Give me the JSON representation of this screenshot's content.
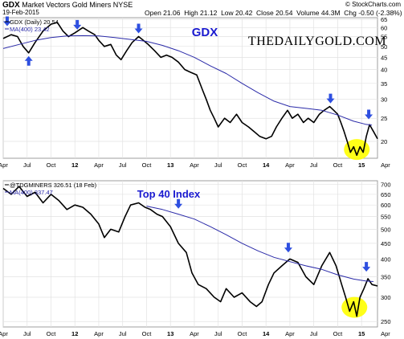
{
  "header": {
    "symbol": "GDX",
    "name": "Market Vectors Gold Miners",
    "exchange": "NYSE",
    "date": "19-Feb-2015",
    "credit": "© StockCharts.com",
    "open_label": "Open",
    "open": "21.06",
    "high_label": "High",
    "high": "21.12",
    "low_label": "Low",
    "low": "20.42",
    "close_label": "Close",
    "close": "20.54",
    "volume_label": "Volume",
    "volume": "44.3M",
    "chg_label": "Chg",
    "chg": "-0.50 (-2.38%)",
    "chg_arrow": "▼"
  },
  "colors": {
    "price": "#000000",
    "ma": "#2a2aa8",
    "arrow": "#2e4fe0",
    "highlight": "#ffff00",
    "title": "#1a1ad0",
    "grid": "#e2e2e2",
    "chg": "#cc0000"
  },
  "chart_data": [
    {
      "type": "line",
      "title": "GDX",
      "watermark": "THEDAILYGOLD.COM",
      "legend": [
        "GDX (Daily) 20.54",
        "MA(400) 23.42"
      ],
      "legend_position": "top-left",
      "grid": true,
      "scale": "log",
      "ylim": [
        17,
        66
      ],
      "yticks": [
        20,
        25,
        30,
        35,
        40,
        45,
        50,
        55,
        60,
        65
      ],
      "xlim": [
        0,
        47
      ],
      "xticks": [
        {
          "x": 0,
          "label": "Apr"
        },
        {
          "x": 3,
          "label": "Jul"
        },
        {
          "x": 6,
          "label": "Oct"
        },
        {
          "x": 9,
          "label": "12"
        },
        {
          "x": 12,
          "label": "Apr"
        },
        {
          "x": 15,
          "label": "Jul"
        },
        {
          "x": 18,
          "label": "Oct"
        },
        {
          "x": 21,
          "label": "13"
        },
        {
          "x": 24,
          "label": "Apr"
        },
        {
          "x": 27,
          "label": "Jul"
        },
        {
          "x": 30,
          "label": "Oct"
        },
        {
          "x": 33,
          "label": "14"
        },
        {
          "x": 36,
          "label": "Apr"
        },
        {
          "x": 39,
          "label": "Jul"
        },
        {
          "x": 42,
          "label": "Oct"
        },
        {
          "x": 45,
          "label": "15"
        },
        {
          "x": 48,
          "label": "Apr"
        }
      ],
      "series": [
        {
          "name": "GDX (Daily)",
          "points": [
            [
              0,
              54
            ],
            [
              1,
              56
            ],
            [
              1.8,
              55
            ],
            [
              2.5,
              50
            ],
            [
              3.2,
              47
            ],
            [
              4,
              52
            ],
            [
              5,
              58
            ],
            [
              6,
              62
            ],
            [
              6.8,
              63
            ],
            [
              7.5,
              58
            ],
            [
              8.2,
              55
            ],
            [
              9,
              57
            ],
            [
              10,
              60
            ],
            [
              10.7,
              58
            ],
            [
              11.5,
              56
            ],
            [
              12,
              53
            ],
            [
              12.7,
              50
            ],
            [
              13.5,
              51
            ],
            [
              14.2,
              46
            ],
            [
              14.8,
              44
            ],
            [
              15.5,
              48
            ],
            [
              16.2,
              52
            ],
            [
              17,
              55
            ],
            [
              17.6,
              53
            ],
            [
              18.2,
              51
            ],
            [
              19,
              48
            ],
            [
              19.8,
              45
            ],
            [
              20.5,
              46
            ],
            [
              21.2,
              45
            ],
            [
              22,
              43
            ],
            [
              22.8,
              40
            ],
            [
              23.5,
              39
            ],
            [
              24.3,
              38
            ],
            [
              25,
              33
            ],
            [
              25.5,
              30
            ],
            [
              26,
              27
            ],
            [
              26.5,
              25
            ],
            [
              27,
              23
            ],
            [
              27.8,
              25
            ],
            [
              28.5,
              24
            ],
            [
              29.3,
              26
            ],
            [
              30,
              24
            ],
            [
              30.8,
              23
            ],
            [
              31.5,
              22
            ],
            [
              32.2,
              21
            ],
            [
              33,
              20.5
            ],
            [
              33.7,
              21
            ],
            [
              34.3,
              23
            ],
            [
              35,
              25
            ],
            [
              35.7,
              27
            ],
            [
              36.3,
              25
            ],
            [
              37,
              26
            ],
            [
              37.7,
              24
            ],
            [
              38.3,
              25
            ],
            [
              39,
              24
            ],
            [
              39.7,
              26
            ],
            [
              40.3,
              27
            ],
            [
              41,
              28
            ],
            [
              41.5,
              27
            ],
            [
              42,
              26
            ],
            [
              42.4,
              24
            ],
            [
              42.8,
              22
            ],
            [
              43.2,
              20
            ],
            [
              43.6,
              18
            ],
            [
              44,
              19
            ],
            [
              44.4,
              17.5
            ],
            [
              44.8,
              19
            ],
            [
              45.2,
              18
            ],
            [
              45.6,
              21
            ],
            [
              46,
              23.5
            ],
            [
              46.5,
              22
            ],
            [
              47,
              20.5
            ]
          ]
        },
        {
          "name": "MA(400)",
          "points": [
            [
              0,
              49
            ],
            [
              2,
              51
            ],
            [
              4,
              53
            ],
            [
              6,
              54.5
            ],
            [
              8,
              55.3
            ],
            [
              10,
              55.5
            ],
            [
              12,
              55.3
            ],
            [
              14,
              54.5
            ],
            [
              16,
              53.5
            ],
            [
              18,
              52.5
            ],
            [
              20,
              50.5
            ],
            [
              22,
              48
            ],
            [
              24,
              45
            ],
            [
              26,
              41.5
            ],
            [
              28,
              38.5
            ],
            [
              30,
              35
            ],
            [
              32,
              32
            ],
            [
              34,
              29.5
            ],
            [
              36,
              28
            ],
            [
              38,
              27.5
            ],
            [
              40,
              27
            ],
            [
              42,
              25.8
            ],
            [
              44,
              24.3
            ],
            [
              45.5,
              23.6
            ],
            [
              46.3,
              23.42
            ]
          ]
        }
      ],
      "annotations": [
        {
          "type": "arrow-down",
          "x": 0.5,
          "y": 59
        },
        {
          "type": "arrow-up",
          "x": 3.2,
          "y": 47
        },
        {
          "type": "arrow-down",
          "x": 9.3,
          "y": 57
        },
        {
          "type": "arrow-down",
          "x": 17,
          "y": 55
        },
        {
          "type": "arrow-down",
          "x": 41.1,
          "y": 28
        },
        {
          "type": "arrow-down",
          "x": 45.9,
          "y": 24
        },
        {
          "type": "ellipse",
          "x": 44.4,
          "y": 18.5
        }
      ]
    },
    {
      "type": "line",
      "title": "Top 40 Index",
      "legend": [
        "@TDGMINERS 326.51 (18 Feb)",
        "MA(400) 337.47"
      ],
      "legend_position": "top-left",
      "grid": true,
      "scale": "log",
      "ylim": [
        240,
        720
      ],
      "yticks": [
        250,
        300,
        350,
        400,
        450,
        500,
        550,
        600,
        650,
        700
      ],
      "xlim": [
        0,
        47
      ],
      "xticks": [
        {
          "x": 0,
          "label": "Apr"
        },
        {
          "x": 3,
          "label": "Jul"
        },
        {
          "x": 6,
          "label": "Oct"
        },
        {
          "x": 9,
          "label": "12"
        },
        {
          "x": 12,
          "label": "Apr"
        },
        {
          "x": 15,
          "label": "Jul"
        },
        {
          "x": 18,
          "label": "Oct"
        },
        {
          "x": 21,
          "label": "13"
        },
        {
          "x": 24,
          "label": "Apr"
        },
        {
          "x": 27,
          "label": "Jul"
        },
        {
          "x": 30,
          "label": "Oct"
        },
        {
          "x": 33,
          "label": "14"
        },
        {
          "x": 36,
          "label": "Apr"
        },
        {
          "x": 39,
          "label": "Jul"
        },
        {
          "x": 42,
          "label": "Oct"
        },
        {
          "x": 45,
          "label": "15"
        },
        {
          "x": 48,
          "label": "Apr"
        }
      ],
      "series": [
        {
          "name": "@TDGMINERS",
          "points": [
            [
              0,
              680
            ],
            [
              1,
              650
            ],
            [
              2,
              690
            ],
            [
              3,
              640
            ],
            [
              4,
              660
            ],
            [
              5,
              610
            ],
            [
              6,
              650
            ],
            [
              7,
              620
            ],
            [
              8,
              580
            ],
            [
              9,
              600
            ],
            [
              10,
              590
            ],
            [
              11,
              560
            ],
            [
              12,
              520
            ],
            [
              12.7,
              470
            ],
            [
              13.5,
              500
            ],
            [
              14.5,
              490
            ],
            [
              15.3,
              550
            ],
            [
              16,
              600
            ],
            [
              17,
              610
            ],
            [
              17.8,
              590
            ],
            [
              18.5,
              580
            ],
            [
              19.3,
              560
            ],
            [
              20,
              550
            ],
            [
              21,
              510
            ],
            [
              22,
              450
            ],
            [
              23,
              420
            ],
            [
              23.7,
              360
            ],
            [
              24.5,
              330
            ],
            [
              25.5,
              320
            ],
            [
              26.5,
              300
            ],
            [
              27.3,
              290
            ],
            [
              28,
              320
            ],
            [
              29,
              300
            ],
            [
              30,
              310
            ],
            [
              31,
              290
            ],
            [
              31.8,
              280
            ],
            [
              32.5,
              290
            ],
            [
              33.3,
              330
            ],
            [
              34,
              360
            ],
            [
              35,
              380
            ],
            [
              36,
              400
            ],
            [
              37,
              390
            ],
            [
              38,
              350
            ],
            [
              39,
              330
            ],
            [
              40,
              380
            ],
            [
              41,
              420
            ],
            [
              41.8,
              380
            ],
            [
              42.5,
              330
            ],
            [
              43,
              300
            ],
            [
              43.5,
              270
            ],
            [
              44,
              290
            ],
            [
              44.4,
              260
            ],
            [
              44.8,
              300
            ],
            [
              45.3,
              320
            ],
            [
              45.8,
              345
            ],
            [
              46.3,
              330
            ],
            [
              47,
              326.51
            ]
          ]
        },
        {
          "name": "MA(400)",
          "points": [
            [
              18,
              595
            ],
            [
              20,
              580
            ],
            [
              22,
              560
            ],
            [
              24,
              540
            ],
            [
              26,
              510
            ],
            [
              28,
              480
            ],
            [
              30,
              450
            ],
            [
              32,
              425
            ],
            [
              34,
              405
            ],
            [
              36,
              392
            ],
            [
              38,
              380
            ],
            [
              40,
              370
            ],
            [
              42,
              355
            ],
            [
              44,
              344
            ],
            [
              45.5,
              339
            ],
            [
              46.5,
              337.47
            ]
          ]
        }
      ],
      "annotations": [
        {
          "type": "arrow-down",
          "x": 22,
          "y": 570
        },
        {
          "type": "arrow-down",
          "x": 35.8,
          "y": 410
        },
        {
          "type": "arrow-down",
          "x": 45.6,
          "y": 355
        },
        {
          "type": "ellipse",
          "x": 44.1,
          "y": 278
        }
      ]
    }
  ]
}
